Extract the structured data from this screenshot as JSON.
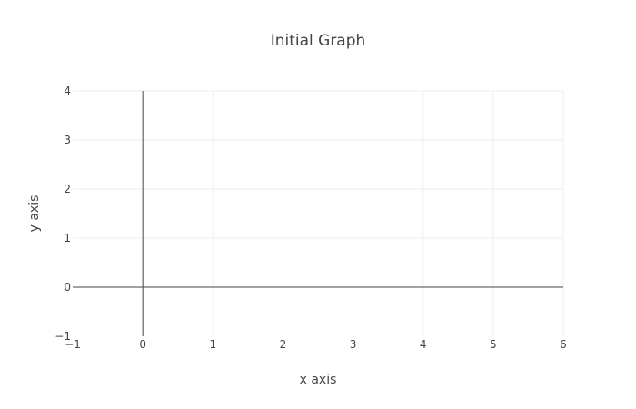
{
  "chart_data": {
    "type": "line",
    "title": "Initial Graph",
    "xlabel": "x axis",
    "ylabel": "y axis",
    "xlim": [
      -1,
      6
    ],
    "ylim": [
      -1,
      4
    ],
    "x_ticks": [
      -1,
      0,
      1,
      2,
      3,
      4,
      5,
      6
    ],
    "y_ticks": [
      -1,
      0,
      1,
      2,
      3,
      4
    ],
    "x_tick_labels": [
      "−1",
      "0",
      "1",
      "2",
      "3",
      "4",
      "5",
      "6"
    ],
    "y_tick_labels": [
      "−1",
      "0",
      "1",
      "2",
      "3",
      "4"
    ],
    "grid": true,
    "zero_lines": true,
    "series": [],
    "colors": {
      "grid": "#eeeeee",
      "zero_line": "#444444",
      "text": "#444444",
      "background": "#ffffff"
    }
  }
}
